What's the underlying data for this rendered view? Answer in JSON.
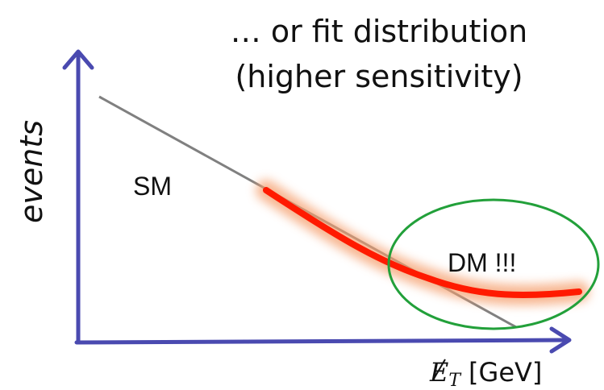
{
  "title": {
    "line1": "… or fit distribution",
    "line2": "(higher sensitivity)"
  },
  "axes": {
    "y_label": "events",
    "x_label_symbol": "E",
    "x_label_subscript": "T",
    "x_label_unit": "[GeV]",
    "color": "#4a4ab0"
  },
  "regions": {
    "sm_label": "SM",
    "dm_label": "DM !!!"
  },
  "colors": {
    "sm_line": "#808080",
    "signal_line": "#ff1a00",
    "signal_glow": "#f5a070",
    "dm_ellipse": "#22a03a"
  }
}
